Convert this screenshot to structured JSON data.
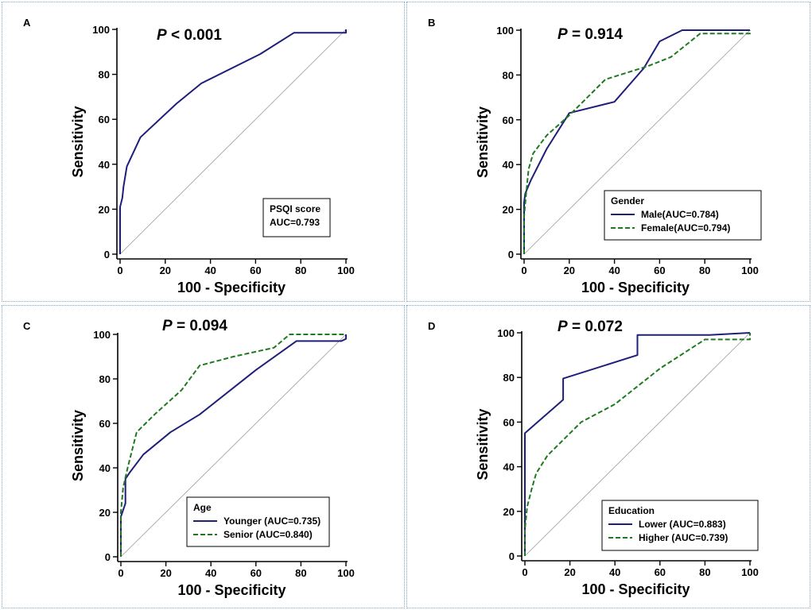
{
  "chart_data": [
    {
      "type": "line",
      "panel_label": "A",
      "p_label": "P",
      "p_text": " < 0.001",
      "xlabel": "100 - Specificity",
      "ylabel": "Sensitivity",
      "xlim": [
        0,
        100
      ],
      "ylim": [
        0,
        100
      ],
      "xticks": [
        0,
        20,
        40,
        60,
        80,
        100
      ],
      "yticks": [
        0,
        20,
        40,
        60,
        80,
        100
      ],
      "legend_title": "PSQI score",
      "legend_placement": "bottom-right",
      "legend_boxed_lines": false,
      "series": [
        {
          "name": "AUC=0.793",
          "color": "#1f1f7a",
          "dash": "solid",
          "x": [
            0,
            0,
            1,
            1.5,
            3,
            9,
            25,
            36,
            62,
            77,
            100,
            100
          ],
          "y": [
            0,
            21,
            25,
            30,
            39,
            52,
            67,
            76,
            89,
            98.5,
            98.5,
            100
          ]
        }
      ]
    },
    {
      "type": "line",
      "panel_label": "B",
      "p_label": "P",
      "p_text": " = 0.914",
      "xlabel": "100 - Specificity",
      "ylabel": "Sensitivity",
      "xlim": [
        0,
        100
      ],
      "ylim": [
        0,
        100
      ],
      "xticks": [
        0,
        20,
        40,
        60,
        80,
        100
      ],
      "yticks": [
        0,
        20,
        40,
        60,
        80,
        100
      ],
      "legend_title": "Gender",
      "legend_placement": "bottom-right",
      "legend_boxed_lines": true,
      "series": [
        {
          "name": "Male(AUC=0.784)",
          "color": "#1f1f7a",
          "dash": "solid",
          "x": [
            0,
            0,
            0.5,
            3,
            10,
            20,
            40,
            53,
            60,
            70,
            100,
            100
          ],
          "y": [
            0,
            23,
            27,
            33,
            47,
            63,
            68,
            83,
            95,
            100,
            100,
            100
          ]
        },
        {
          "name": "Female(AUC=0.794)",
          "color": "#1e7a1e",
          "dash": "dashed",
          "x": [
            0,
            0,
            1,
            2,
            4,
            10,
            20,
            30,
            36,
            55,
            65,
            78,
            100,
            100
          ],
          "y": [
            0,
            17,
            28,
            38,
            45,
            53,
            62,
            72,
            78,
            84,
            88,
            98.5,
            98.5,
            100
          ]
        }
      ]
    },
    {
      "type": "line",
      "panel_label": "C",
      "p_label": "P",
      "p_text": " = 0.094",
      "xlabel": "100 - Specificity",
      "ylabel": "Sensitivity",
      "xlim": [
        0,
        100
      ],
      "ylim": [
        0,
        100
      ],
      "xticks": [
        0,
        20,
        40,
        60,
        80,
        100
      ],
      "yticks": [
        0,
        20,
        40,
        60,
        80,
        100
      ],
      "legend_title": "Age",
      "legend_placement": "bottom-right",
      "legend_boxed_lines": true,
      "series": [
        {
          "name": "Younger (AUC=0.735)",
          "color": "#1f1f7a",
          "dash": "solid",
          "x": [
            0,
            0,
            2,
            2,
            4,
            10,
            22,
            35,
            60,
            78,
            98,
            100,
            100
          ],
          "y": [
            0,
            18,
            24,
            35,
            38,
            46,
            56,
            64,
            84,
            97,
            97,
            98,
            100
          ]
        },
        {
          "name": "Senior (AUC=0.840)",
          "color": "#1e7a1e",
          "dash": "dashed",
          "x": [
            0,
            0,
            1,
            3,
            7,
            15,
            27,
            35,
            50,
            68,
            75,
            100,
            100
          ],
          "y": [
            0,
            20,
            31,
            40,
            56,
            64,
            75,
            86,
            90,
            94,
            100,
            100,
            100
          ]
        }
      ]
    },
    {
      "type": "line",
      "panel_label": "D",
      "p_label": "P",
      "p_text": " = 0.072",
      "xlabel": "100 - Specificity",
      "ylabel": "Sensitivity",
      "xlim": [
        0,
        100
      ],
      "ylim": [
        0,
        100
      ],
      "xticks": [
        0,
        20,
        40,
        60,
        80,
        100
      ],
      "yticks": [
        0,
        20,
        40,
        60,
        80,
        100
      ],
      "legend_title": "Education",
      "legend_placement": "bottom-right",
      "legend_boxed_lines": true,
      "series": [
        {
          "name": "Lower (AUC=0.883)",
          "color": "#1f1f7a",
          "dash": "solid",
          "x": [
            0,
            0,
            17,
            17,
            50,
            50,
            82,
            100,
            100
          ],
          "y": [
            0,
            55,
            70,
            79.5,
            90,
            99,
            99,
            100,
            100
          ]
        },
        {
          "name": "Higher (AUC=0.739)",
          "color": "#1e7a1e",
          "dash": "dashed",
          "x": [
            0,
            0,
            1,
            3,
            5,
            10,
            25,
            40,
            60,
            80,
            100,
            100
          ],
          "y": [
            0,
            12,
            22,
            30,
            37,
            45,
            60,
            68,
            84,
            97,
            97,
            100
          ]
        }
      ]
    }
  ]
}
